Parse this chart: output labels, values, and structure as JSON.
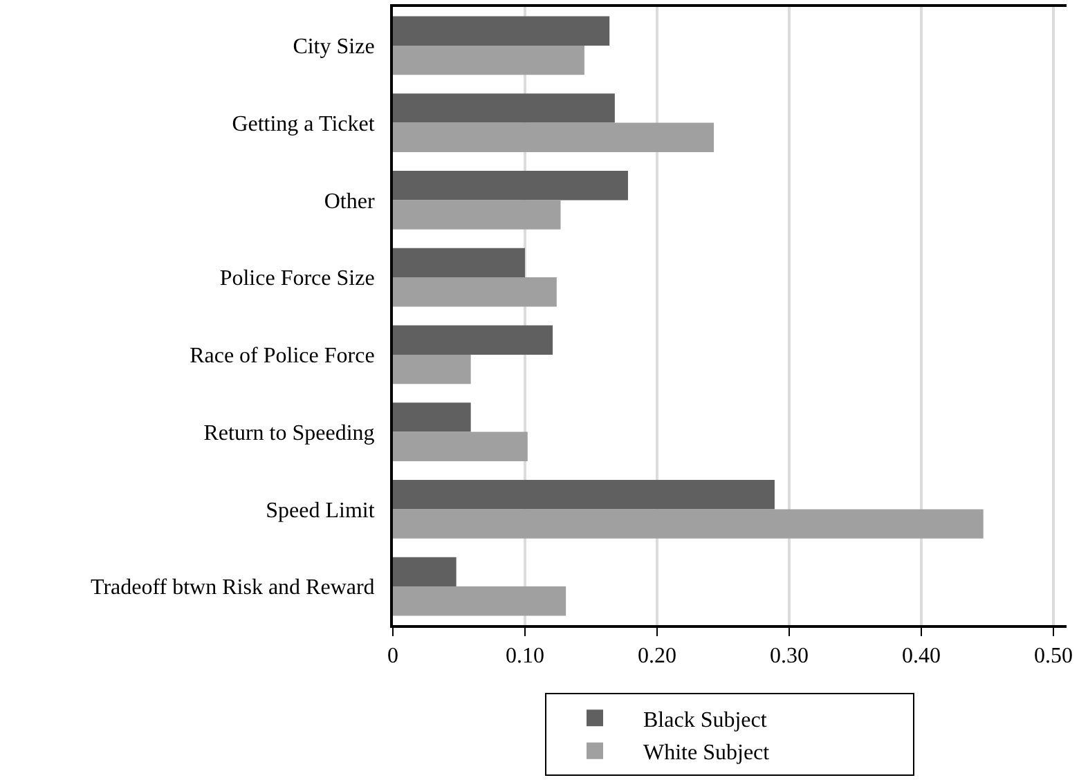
{
  "chart_data": {
    "type": "bar",
    "orientation": "horizontal",
    "categories": [
      "City Size",
      "Getting a Ticket",
      "Other",
      "Police Force Size",
      "Race of Police Force",
      "Return to Speeding",
      "Speed Limit",
      "Tradeoff btwn Risk and Reward"
    ],
    "series": [
      {
        "name": "Black Subject",
        "color": "#606060",
        "values": [
          0.164,
          0.168,
          0.178,
          0.1,
          0.121,
          0.059,
          0.289,
          0.048
        ]
      },
      {
        "name": "White Subject",
        "color": "#a0a0a0",
        "values": [
          0.145,
          0.243,
          0.127,
          0.124,
          0.059,
          0.102,
          0.447,
          0.131
        ]
      }
    ],
    "xlim": [
      0,
      0.51
    ],
    "xticks": [
      0,
      {
        "value": 0.1,
        "label": "0.10"
      },
      {
        "value": 0.2,
        "label": "0.20"
      },
      {
        "value": 0.3,
        "label": "0.30"
      },
      {
        "value": 0.4,
        "label": "0.40"
      },
      {
        "value": 0.5,
        "label": "0.50"
      }
    ],
    "grid": "x",
    "legend": "bottom"
  }
}
